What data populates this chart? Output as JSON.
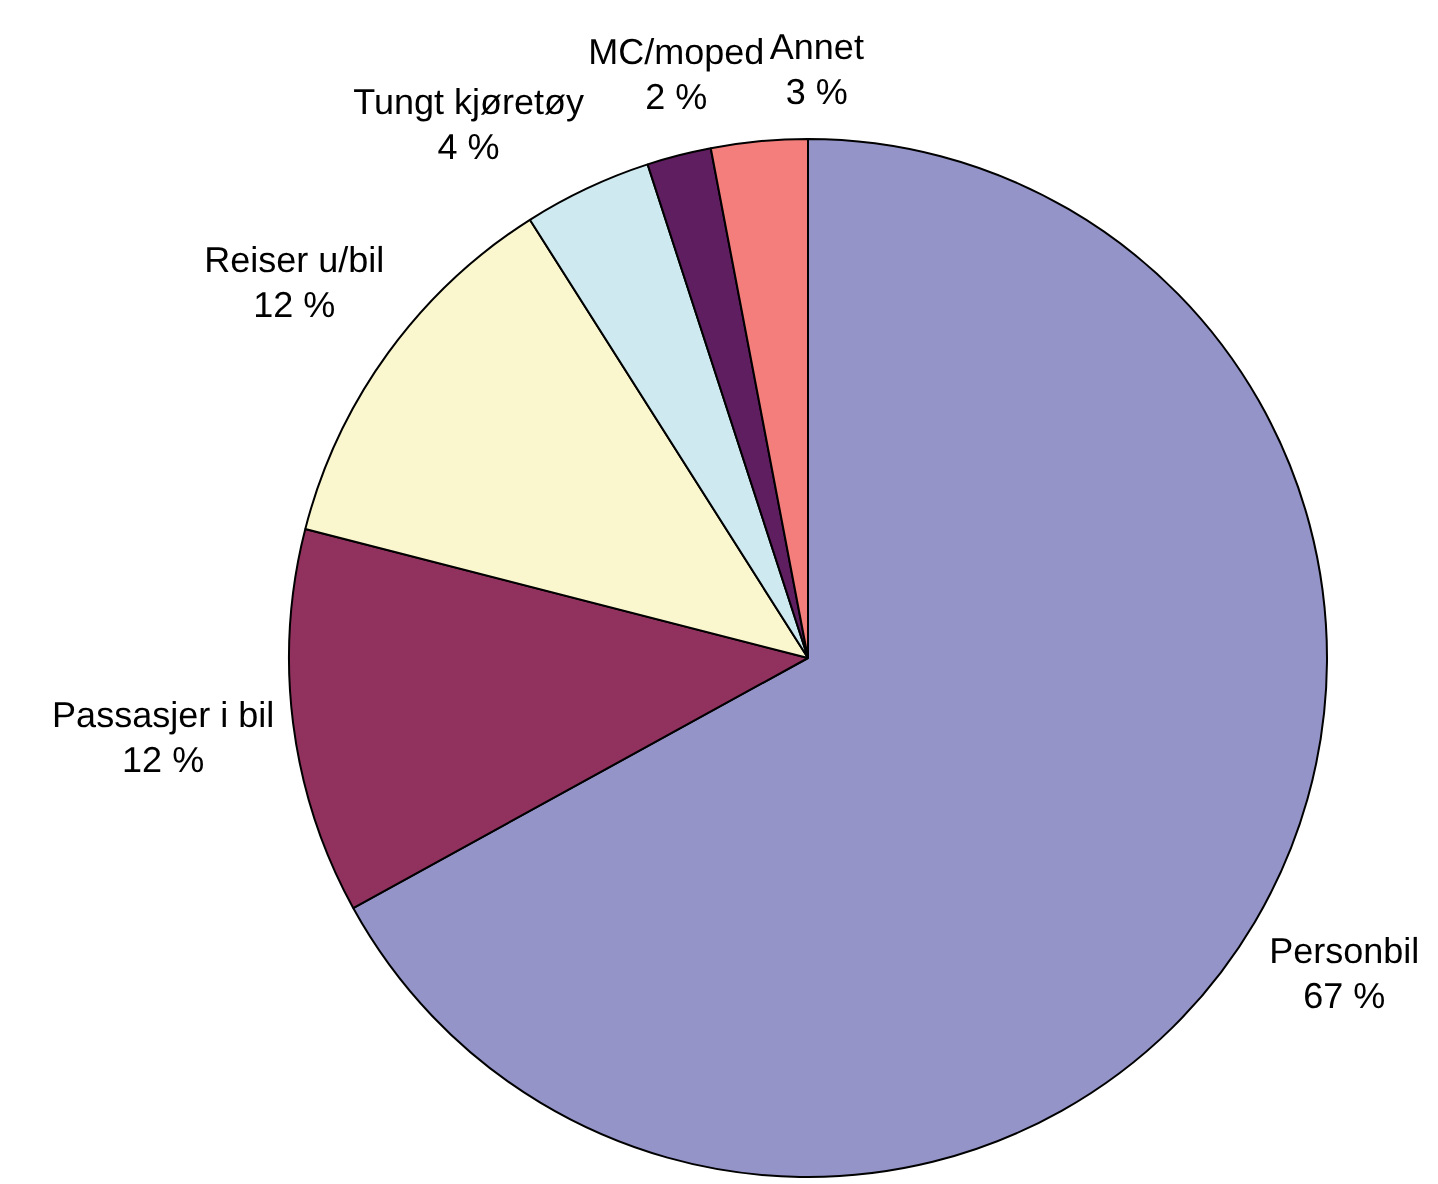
{
  "chart_data": {
    "type": "pie",
    "categories": [
      "Personbil",
      "Passasjer i bil",
      "Reiser u/bil",
      "Tungt kjøretøy",
      "MC/moped",
      "Annet"
    ],
    "values": [
      67,
      12,
      12,
      4,
      2,
      3
    ],
    "colors": [
      "#9494c8",
      "#91325e",
      "#faf6ce",
      "#ceeaf0",
      "#5f1e5f",
      "#f47e7b"
    ],
    "value_labels": [
      "67 %",
      "12 %",
      "12 %",
      "4 %",
      "2 %",
      "3 %"
    ]
  }
}
